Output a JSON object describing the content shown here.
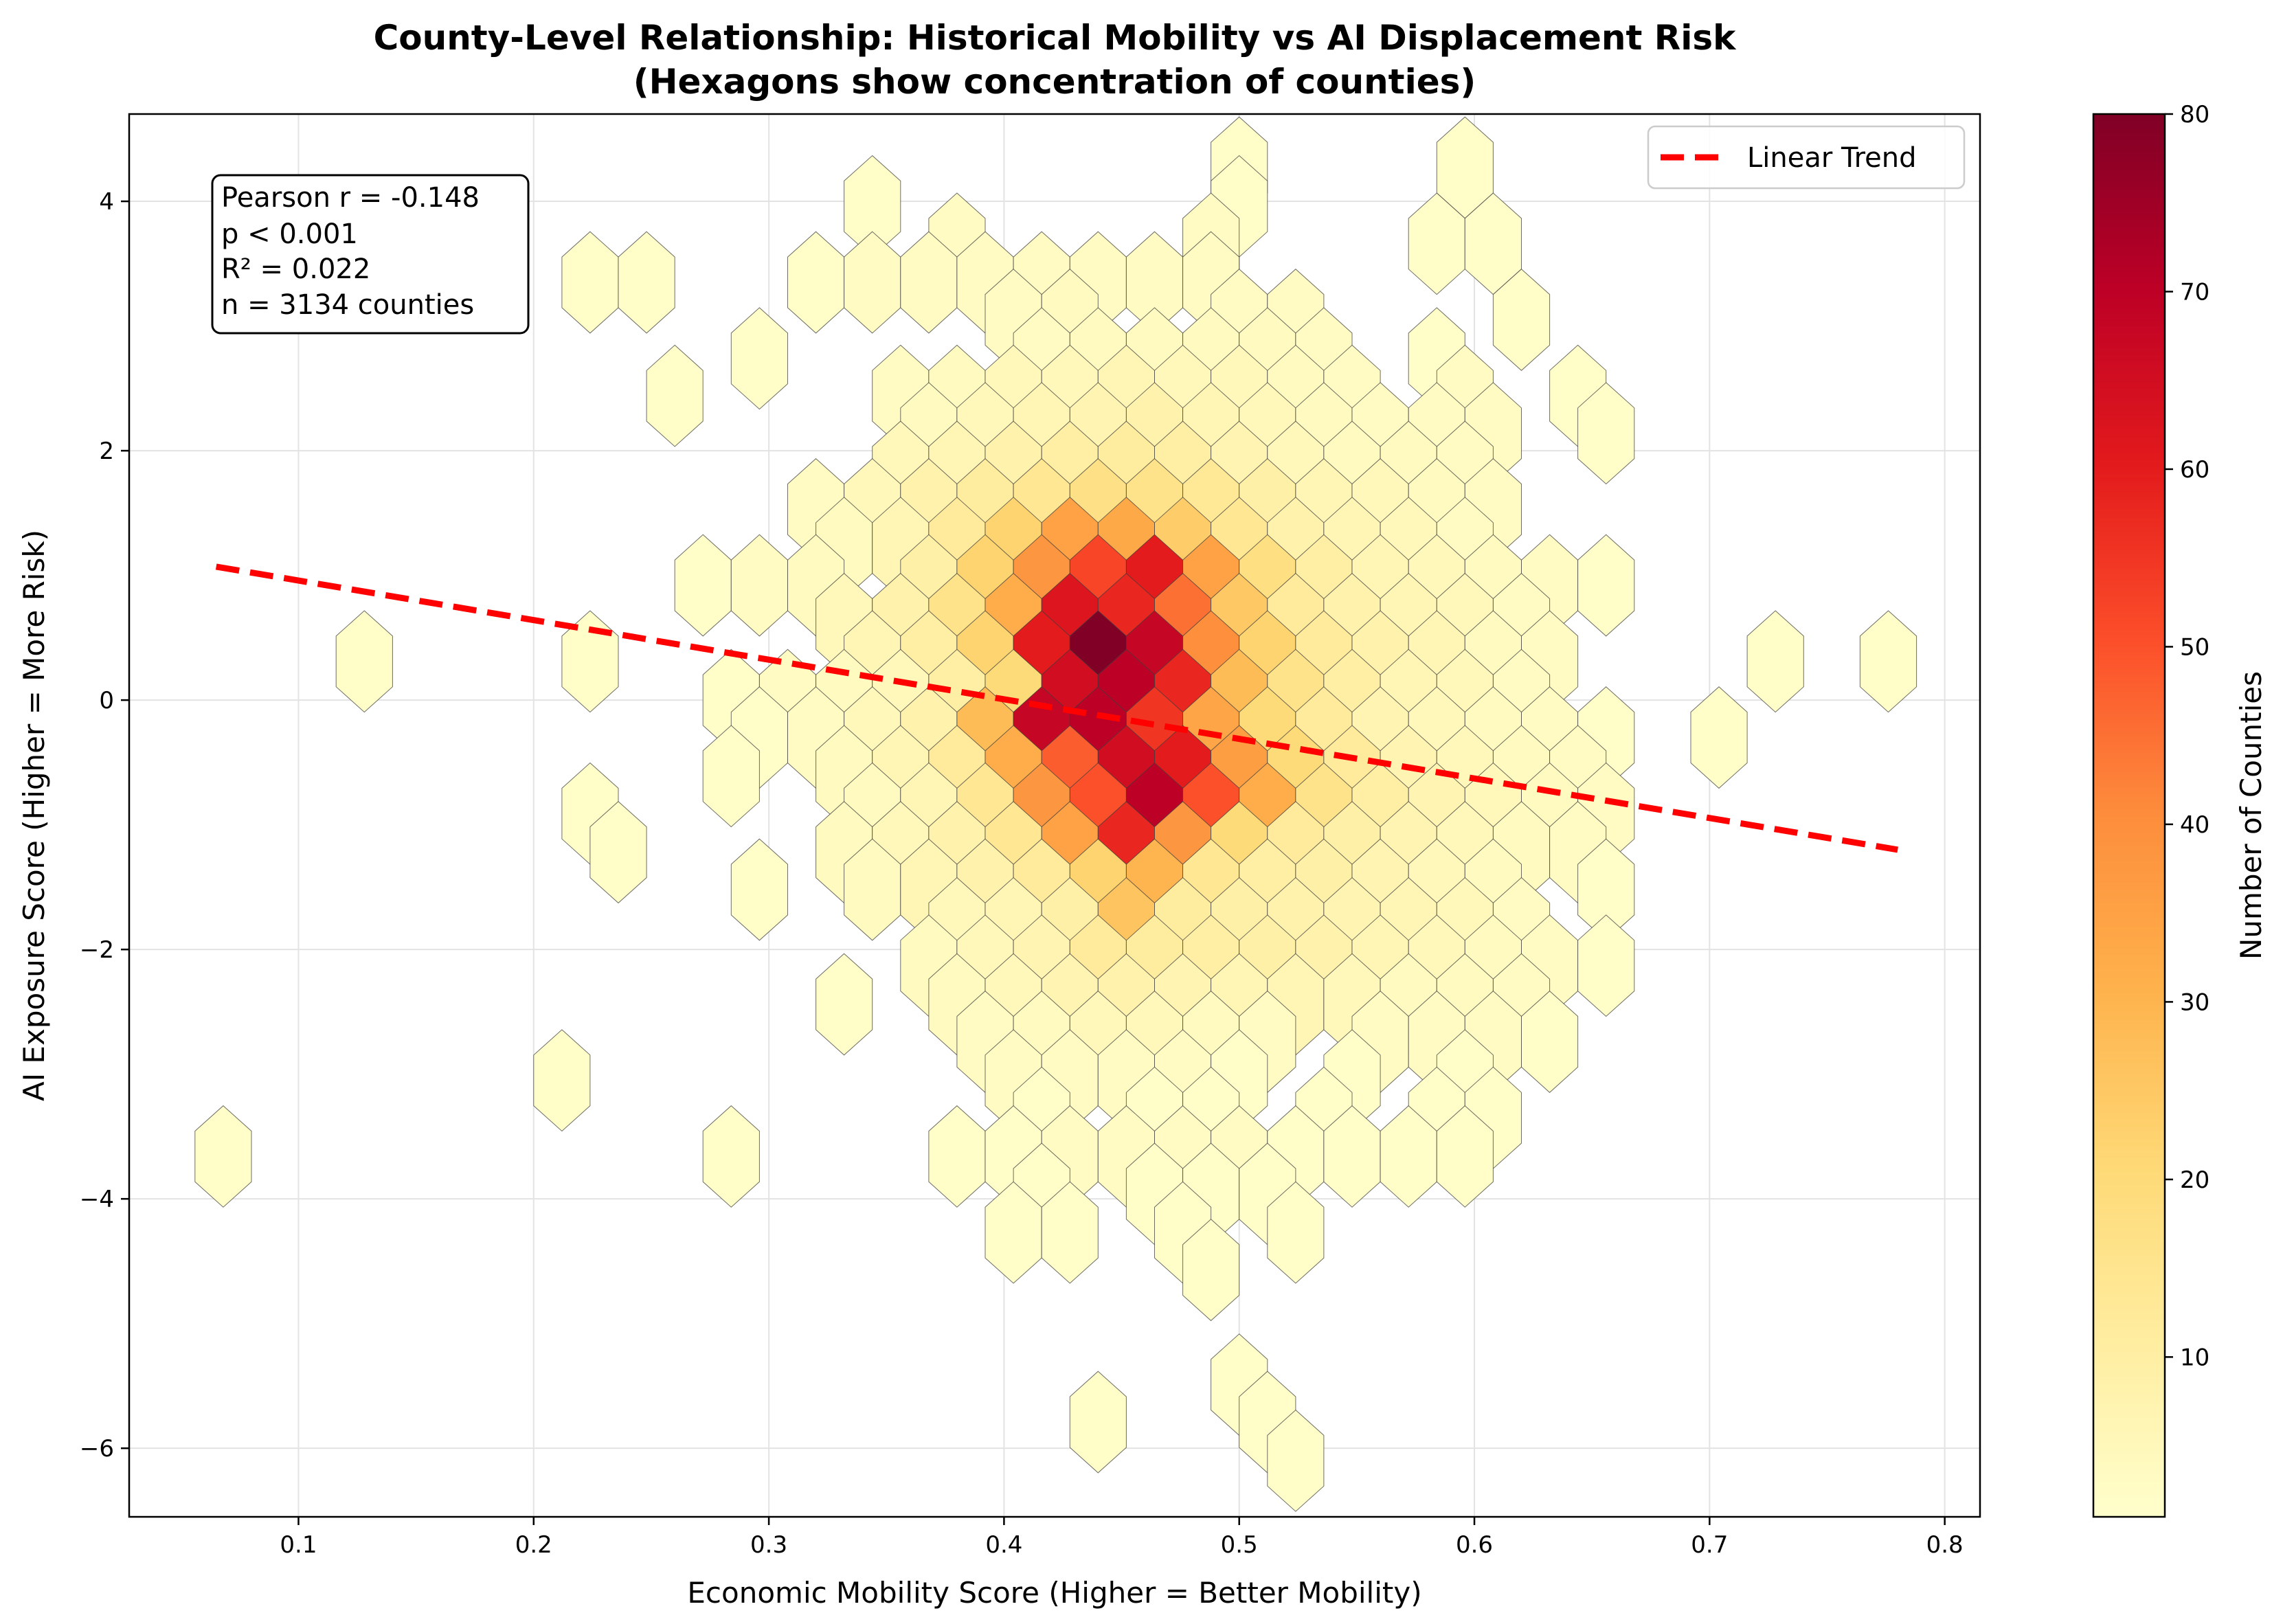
{
  "chart_data": {
    "type": "hexbin",
    "title_line1": "County-Level Relationship: Historical Mobility vs AI Displacement Risk",
    "title_line2": "(Hexagons show concentration of counties)",
    "xlabel": "Economic Mobility Score (Higher = Better Mobility)",
    "ylabel": "AI Exposure Score (Higher = More Risk)",
    "xlim": [
      0.028,
      0.815
    ],
    "ylim": [
      -6.55,
      4.7
    ],
    "x_ticks": [
      0.1,
      0.2,
      0.3,
      0.4,
      0.5,
      0.6,
      0.7,
      0.8
    ],
    "x_tick_labels": [
      "0.1",
      "0.2",
      "0.3",
      "0.4",
      "0.5",
      "0.6",
      "0.7",
      "0.8"
    ],
    "y_ticks": [
      4,
      2,
      0,
      -2,
      -4,
      -6
    ],
    "y_tick_labels": [
      "4",
      "2",
      "0",
      "−2",
      "−4",
      "−6"
    ],
    "grid": true,
    "colormap": "YlOrRd",
    "colorbar": {
      "label": "Number of Counties",
      "min": 1,
      "max": 80,
      "ticks": [
        10,
        20,
        30,
        40,
        50,
        60,
        70,
        80
      ],
      "tick_labels": [
        "10",
        "20",
        "30",
        "40",
        "50",
        "60",
        "70",
        "80"
      ]
    },
    "trend": {
      "name": "Linear Trend",
      "color": "#ff0000",
      "x": [
        0.065,
        0.78
      ],
      "y": [
        1.07,
        -1.2
      ]
    },
    "legend": {
      "placement": "top-right",
      "entries": [
        "Linear Trend"
      ]
    },
    "annotation": {
      "lines": [
        "Pearson r = -0.148",
        "p < 0.001",
        "R² = 0.022",
        "n = 3134 counties"
      ]
    },
    "hex_grid": {
      "x_step": 0.024,
      "y_step": 0.61,
      "even_row_x0": 0.016,
      "odd_row_x0": 0.028,
      "row0_y": 0.0,
      "odd_row_y0": 0.305
    },
    "hexbins": [
      [
        0.5,
        4.27,
        2
      ],
      [
        0.596,
        4.27,
        2
      ],
      [
        0.344,
        3.96,
        2
      ],
      [
        0.5,
        3.96,
        2
      ],
      [
        0.38,
        3.66,
        3
      ],
      [
        0.488,
        3.66,
        3
      ],
      [
        0.584,
        3.66,
        2
      ],
      [
        0.608,
        3.66,
        2
      ],
      [
        0.224,
        3.35,
        2
      ],
      [
        0.248,
        3.35,
        2
      ],
      [
        0.32,
        3.35,
        2
      ],
      [
        0.344,
        3.35,
        3
      ],
      [
        0.368,
        3.35,
        3
      ],
      [
        0.392,
        3.35,
        3
      ],
      [
        0.416,
        3.35,
        3
      ],
      [
        0.44,
        3.35,
        3
      ],
      [
        0.464,
        3.35,
        3
      ],
      [
        0.488,
        3.35,
        3
      ],
      [
        0.404,
        3.05,
        3
      ],
      [
        0.428,
        3.05,
        4
      ],
      [
        0.5,
        3.05,
        3
      ],
      [
        0.524,
        3.05,
        3
      ],
      [
        0.62,
        3.05,
        2
      ],
      [
        0.296,
        2.74,
        2
      ],
      [
        0.416,
        2.74,
        3
      ],
      [
        0.44,
        2.74,
        4
      ],
      [
        0.464,
        2.74,
        4
      ],
      [
        0.488,
        2.74,
        4
      ],
      [
        0.512,
        2.74,
        4
      ],
      [
        0.536,
        2.74,
        3
      ],
      [
        0.584,
        2.74,
        2
      ],
      [
        0.26,
        2.44,
        2
      ],
      [
        0.356,
        2.44,
        3
      ],
      [
        0.38,
        2.44,
        4
      ],
      [
        0.404,
        2.44,
        5
      ],
      [
        0.428,
        2.44,
        5
      ],
      [
        0.452,
        2.44,
        6
      ],
      [
        0.476,
        2.44,
        5
      ],
      [
        0.5,
        2.44,
        5
      ],
      [
        0.524,
        2.44,
        4
      ],
      [
        0.548,
        2.44,
        3
      ],
      [
        0.596,
        2.44,
        3
      ],
      [
        0.644,
        2.44,
        2
      ],
      [
        0.368,
        2.14,
        4
      ],
      [
        0.392,
        2.14,
        5
      ],
      [
        0.416,
        2.14,
        6
      ],
      [
        0.44,
        2.14,
        7
      ],
      [
        0.464,
        2.14,
        8
      ],
      [
        0.488,
        2.14,
        6
      ],
      [
        0.512,
        2.14,
        5
      ],
      [
        0.536,
        2.14,
        4
      ],
      [
        0.56,
        2.14,
        3
      ],
      [
        0.584,
        2.14,
        3
      ],
      [
        0.608,
        2.14,
        3
      ],
      [
        0.656,
        2.14,
        2
      ],
      [
        0.356,
        1.83,
        5
      ],
      [
        0.38,
        1.83,
        6
      ],
      [
        0.404,
        1.83,
        8
      ],
      [
        0.428,
        1.83,
        10
      ],
      [
        0.452,
        1.83,
        11
      ],
      [
        0.476,
        1.83,
        10
      ],
      [
        0.5,
        1.83,
        7
      ],
      [
        0.524,
        1.83,
        5
      ],
      [
        0.548,
        1.83,
        4
      ],
      [
        0.572,
        1.83,
        4
      ],
      [
        0.596,
        1.83,
        3
      ],
      [
        0.32,
        1.53,
        3
      ],
      [
        0.344,
        1.53,
        5
      ],
      [
        0.368,
        1.53,
        8
      ],
      [
        0.392,
        1.53,
        11
      ],
      [
        0.416,
        1.53,
        14
      ],
      [
        0.44,
        1.53,
        17
      ],
      [
        0.464,
        1.53,
        16
      ],
      [
        0.488,
        1.53,
        13
      ],
      [
        0.512,
        1.53,
        9
      ],
      [
        0.536,
        1.53,
        6
      ],
      [
        0.56,
        1.53,
        5
      ],
      [
        0.584,
        1.53,
        4
      ],
      [
        0.608,
        1.53,
        3
      ],
      [
        0.332,
        1.22,
        4
      ],
      [
        0.356,
        1.22,
        6
      ],
      [
        0.38,
        1.22,
        12
      ],
      [
        0.404,
        1.22,
        22
      ],
      [
        0.428,
        1.22,
        35
      ],
      [
        0.452,
        1.22,
        33
      ],
      [
        0.476,
        1.22,
        24
      ],
      [
        0.5,
        1.22,
        14
      ],
      [
        0.524,
        1.22,
        8
      ],
      [
        0.548,
        1.22,
        6
      ],
      [
        0.572,
        1.22,
        5
      ],
      [
        0.596,
        1.22,
        3
      ],
      [
        0.272,
        0.92,
        2
      ],
      [
        0.296,
        0.92,
        3
      ],
      [
        0.32,
        0.92,
        4
      ],
      [
        0.368,
        0.92,
        9
      ],
      [
        0.392,
        0.92,
        22
      ],
      [
        0.416,
        0.92,
        38
      ],
      [
        0.44,
        0.92,
        52
      ],
      [
        0.464,
        0.92,
        60
      ],
      [
        0.488,
        0.92,
        35
      ],
      [
        0.512,
        0.92,
        18
      ],
      [
        0.536,
        0.92,
        10
      ],
      [
        0.56,
        0.92,
        6
      ],
      [
        0.584,
        0.92,
        5
      ],
      [
        0.608,
        0.92,
        4
      ],
      [
        0.632,
        0.92,
        3
      ],
      [
        0.656,
        0.92,
        2
      ],
      [
        0.332,
        0.61,
        5
      ],
      [
        0.356,
        0.61,
        8
      ],
      [
        0.38,
        0.61,
        16
      ],
      [
        0.404,
        0.61,
        32
      ],
      [
        0.428,
        0.61,
        62
      ],
      [
        0.452,
        0.61,
        58
      ],
      [
        0.476,
        0.61,
        45
      ],
      [
        0.5,
        0.61,
        25
      ],
      [
        0.524,
        0.61,
        12
      ],
      [
        0.548,
        0.61,
        8
      ],
      [
        0.572,
        0.61,
        6
      ],
      [
        0.596,
        0.61,
        5
      ],
      [
        0.62,
        0.61,
        3
      ],
      [
        0.128,
        0.31,
        2
      ],
      [
        0.224,
        0.31,
        2
      ],
      [
        0.344,
        0.31,
        6
      ],
      [
        0.368,
        0.31,
        10
      ],
      [
        0.392,
        0.31,
        22
      ],
      [
        0.416,
        0.31,
        60
      ],
      [
        0.44,
        0.31,
        80
      ],
      [
        0.464,
        0.31,
        68
      ],
      [
        0.488,
        0.31,
        40
      ],
      [
        0.512,
        0.31,
        22
      ],
      [
        0.536,
        0.31,
        12
      ],
      [
        0.56,
        0.31,
        8
      ],
      [
        0.584,
        0.31,
        6
      ],
      [
        0.608,
        0.31,
        4
      ],
      [
        0.632,
        0.31,
        3
      ],
      [
        0.728,
        0.31,
        2
      ],
      [
        0.776,
        0.31,
        2
      ],
      [
        0.284,
        0.0,
        2
      ],
      [
        0.308,
        0.0,
        3
      ],
      [
        0.332,
        0.0,
        4
      ],
      [
        0.356,
        0.0,
        5
      ],
      [
        0.38,
        0.0,
        10
      ],
      [
        0.404,
        0.0,
        20
      ],
      [
        0.428,
        0.0,
        65
      ],
      [
        0.452,
        0.0,
        70
      ],
      [
        0.476,
        0.0,
        58
      ],
      [
        0.5,
        0.0,
        28
      ],
      [
        0.524,
        0.0,
        16
      ],
      [
        0.548,
        0.0,
        10
      ],
      [
        0.572,
        0.0,
        6
      ],
      [
        0.596,
        0.0,
        5
      ],
      [
        0.62,
        0.0,
        3
      ],
      [
        0.296,
        -0.3,
        2
      ],
      [
        0.32,
        -0.3,
        3
      ],
      [
        0.344,
        -0.3,
        5
      ],
      [
        0.368,
        -0.3,
        8
      ],
      [
        0.392,
        -0.3,
        28
      ],
      [
        0.416,
        -0.3,
        68
      ],
      [
        0.44,
        -0.3,
        70
      ],
      [
        0.464,
        -0.3,
        55
      ],
      [
        0.488,
        -0.3,
        34
      ],
      [
        0.512,
        -0.3,
        20
      ],
      [
        0.536,
        -0.3,
        12
      ],
      [
        0.56,
        -0.3,
        7
      ],
      [
        0.584,
        -0.3,
        5
      ],
      [
        0.608,
        -0.3,
        4
      ],
      [
        0.632,
        -0.3,
        3
      ],
      [
        0.656,
        -0.3,
        2
      ],
      [
        0.704,
        -0.3,
        2
      ],
      [
        0.284,
        -0.61,
        2
      ],
      [
        0.332,
        -0.61,
        4
      ],
      [
        0.356,
        -0.61,
        6
      ],
      [
        0.38,
        -0.61,
        12
      ],
      [
        0.404,
        -0.61,
        32
      ],
      [
        0.428,
        -0.61,
        48
      ],
      [
        0.452,
        -0.61,
        65
      ],
      [
        0.476,
        -0.61,
        60
      ],
      [
        0.5,
        -0.61,
        36
      ],
      [
        0.524,
        -0.61,
        20
      ],
      [
        0.548,
        -0.61,
        12
      ],
      [
        0.572,
        -0.61,
        7
      ],
      [
        0.596,
        -0.61,
        5
      ],
      [
        0.62,
        -0.61,
        4
      ],
      [
        0.644,
        -0.61,
        3
      ],
      [
        0.224,
        -0.91,
        2
      ],
      [
        0.344,
        -0.91,
        4
      ],
      [
        0.368,
        -0.91,
        6
      ],
      [
        0.392,
        -0.91,
        14
      ],
      [
        0.416,
        -0.91,
        38
      ],
      [
        0.44,
        -0.91,
        50
      ],
      [
        0.464,
        -0.91,
        70
      ],
      [
        0.488,
        -0.91,
        50
      ],
      [
        0.512,
        -0.91,
        32
      ],
      [
        0.536,
        -0.91,
        16
      ],
      [
        0.56,
        -0.91,
        10
      ],
      [
        0.584,
        -0.91,
        7
      ],
      [
        0.608,
        -0.91,
        5
      ],
      [
        0.632,
        -0.91,
        4
      ],
      [
        0.656,
        -0.91,
        3
      ],
      [
        0.236,
        -1.22,
        2
      ],
      [
        0.332,
        -1.22,
        4
      ],
      [
        0.356,
        -1.22,
        5
      ],
      [
        0.38,
        -1.22,
        8
      ],
      [
        0.404,
        -1.22,
        14
      ],
      [
        0.428,
        -1.22,
        35
      ],
      [
        0.452,
        -1.22,
        58
      ],
      [
        0.476,
        -1.22,
        38
      ],
      [
        0.5,
        -1.22,
        20
      ],
      [
        0.524,
        -1.22,
        12
      ],
      [
        0.548,
        -1.22,
        9
      ],
      [
        0.572,
        -1.22,
        7
      ],
      [
        0.596,
        -1.22,
        5
      ],
      [
        0.62,
        -1.22,
        4
      ],
      [
        0.644,
        -1.22,
        3
      ],
      [
        0.296,
        -1.52,
        2
      ],
      [
        0.344,
        -1.52,
        4
      ],
      [
        0.368,
        -1.52,
        6
      ],
      [
        0.392,
        -1.52,
        8
      ],
      [
        0.416,
        -1.52,
        12
      ],
      [
        0.44,
        -1.52,
        22
      ],
      [
        0.464,
        -1.52,
        30
      ],
      [
        0.488,
        -1.52,
        14
      ],
      [
        0.512,
        -1.52,
        10
      ],
      [
        0.536,
        -1.52,
        9
      ],
      [
        0.56,
        -1.52,
        7
      ],
      [
        0.584,
        -1.52,
        5
      ],
      [
        0.608,
        -1.52,
        4
      ],
      [
        0.656,
        -1.52,
        2
      ],
      [
        0.38,
        -1.83,
        5
      ],
      [
        0.404,
        -1.83,
        6
      ],
      [
        0.428,
        -1.83,
        9
      ],
      [
        0.452,
        -1.83,
        26
      ],
      [
        0.476,
        -1.83,
        11
      ],
      [
        0.5,
        -1.83,
        9
      ],
      [
        0.524,
        -1.83,
        8
      ],
      [
        0.548,
        -1.83,
        7
      ],
      [
        0.572,
        -1.83,
        6
      ],
      [
        0.596,
        -1.83,
        5
      ],
      [
        0.62,
        -1.83,
        3
      ],
      [
        0.368,
        -2.13,
        4
      ],
      [
        0.392,
        -2.13,
        5
      ],
      [
        0.416,
        -2.13,
        7
      ],
      [
        0.44,
        -2.13,
        12
      ],
      [
        0.464,
        -2.13,
        11
      ],
      [
        0.488,
        -2.13,
        10
      ],
      [
        0.512,
        -2.13,
        9
      ],
      [
        0.536,
        -2.13,
        8
      ],
      [
        0.56,
        -2.13,
        6
      ],
      [
        0.584,
        -2.13,
        5
      ],
      [
        0.608,
        -2.13,
        4
      ],
      [
        0.632,
        -2.13,
        3
      ],
      [
        0.656,
        -2.13,
        2
      ],
      [
        0.332,
        -2.44,
        2
      ],
      [
        0.38,
        -2.44,
        4
      ],
      [
        0.404,
        -2.44,
        5
      ],
      [
        0.428,
        -2.44,
        7
      ],
      [
        0.452,
        -2.44,
        8
      ],
      [
        0.476,
        -2.44,
        7
      ],
      [
        0.5,
        -2.44,
        6
      ],
      [
        0.524,
        -2.44,
        6
      ],
      [
        0.548,
        -2.44,
        5
      ],
      [
        0.572,
        -2.44,
        4
      ],
      [
        0.596,
        -2.44,
        4
      ],
      [
        0.62,
        -2.44,
        3
      ],
      [
        0.392,
        -2.74,
        3
      ],
      [
        0.416,
        -2.74,
        4
      ],
      [
        0.44,
        -2.74,
        5
      ],
      [
        0.464,
        -2.74,
        5
      ],
      [
        0.488,
        -2.74,
        4
      ],
      [
        0.512,
        -2.74,
        3
      ],
      [
        0.56,
        -2.74,
        3
      ],
      [
        0.584,
        -2.74,
        3
      ],
      [
        0.608,
        -2.74,
        3
      ],
      [
        0.632,
        -2.74,
        2
      ],
      [
        0.212,
        -3.05,
        2
      ],
      [
        0.404,
        -3.05,
        3
      ],
      [
        0.428,
        -3.05,
        3
      ],
      [
        0.452,
        -3.05,
        3
      ],
      [
        0.476,
        -3.05,
        3
      ],
      [
        0.5,
        -3.05,
        2
      ],
      [
        0.548,
        -3.05,
        2
      ],
      [
        0.596,
        -3.05,
        2
      ],
      [
        0.416,
        -3.35,
        2
      ],
      [
        0.464,
        -3.35,
        2
      ],
      [
        0.488,
        -3.35,
        2
      ],
      [
        0.536,
        -3.35,
        2
      ],
      [
        0.584,
        -3.35,
        2
      ],
      [
        0.608,
        -3.35,
        2
      ],
      [
        0.068,
        -3.66,
        2
      ],
      [
        0.284,
        -3.66,
        2
      ],
      [
        0.38,
        -3.66,
        2
      ],
      [
        0.404,
        -3.66,
        2
      ],
      [
        0.428,
        -3.66,
        3
      ],
      [
        0.452,
        -3.66,
        3
      ],
      [
        0.476,
        -3.66,
        3
      ],
      [
        0.5,
        -3.66,
        3
      ],
      [
        0.524,
        -3.66,
        2
      ],
      [
        0.548,
        -3.66,
        2
      ],
      [
        0.572,
        -3.66,
        2
      ],
      [
        0.596,
        -3.66,
        2
      ],
      [
        0.416,
        -3.96,
        2
      ],
      [
        0.464,
        -3.96,
        2
      ],
      [
        0.488,
        -3.96,
        2
      ],
      [
        0.512,
        -3.96,
        2
      ],
      [
        0.404,
        -4.27,
        2
      ],
      [
        0.428,
        -4.27,
        2
      ],
      [
        0.476,
        -4.27,
        2
      ],
      [
        0.524,
        -4.27,
        2
      ],
      [
        0.488,
        -4.57,
        2
      ],
      [
        0.5,
        -5.49,
        2
      ],
      [
        0.44,
        -5.79,
        2
      ],
      [
        0.512,
        -5.79,
        2
      ],
      [
        0.524,
        -6.1,
        2
      ]
    ]
  }
}
